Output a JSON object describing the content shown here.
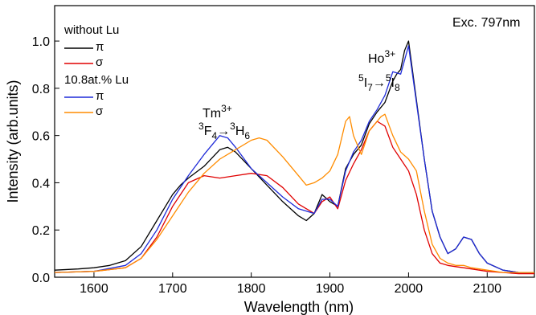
{
  "chart_data": {
    "type": "line",
    "xlabel": "Wavelength (nm)",
    "ylabel": "Intensity (arb.units)",
    "xlim": [
      1550,
      2160
    ],
    "ylim": [
      0,
      1.15
    ],
    "x_ticks": [
      1600,
      1700,
      1800,
      1900,
      2000,
      2100
    ],
    "x_tick_labels": [
      "1600",
      "1700",
      "1800",
      "1900",
      "2000",
      "2100"
    ],
    "y_ticks": [
      0.0,
      0.2,
      0.4,
      0.6,
      0.8,
      1.0
    ],
    "y_tick_labels": [
      "0.0",
      "0.2",
      "0.4",
      "0.6",
      "0.8",
      "1.0"
    ],
    "grid": false,
    "legend_position": "top-left",
    "legend": {
      "group1": "without Lu",
      "group2": "10.8at.% Lu"
    },
    "annotations": {
      "excitation": "Exc. 797nm",
      "tm_ion": "Tm",
      "tm_charge": "3+",
      "tm_upper_mult": "3",
      "tm_upper_term": "F",
      "tm_upper_j": "4",
      "tm_arrow": "→",
      "tm_lower_mult": "3",
      "tm_lower_term": "H",
      "tm_lower_j": "6",
      "ho_ion": "Ho",
      "ho_charge": "3+",
      "ho_upper_mult": "5",
      "ho_upper_term": "I",
      "ho_upper_j": "7",
      "ho_arrow": "→",
      "ho_lower_mult": "5",
      "ho_lower_term": "I",
      "ho_lower_j": "8"
    },
    "series": [
      {
        "name": "π",
        "group": "without Lu",
        "color": "#000000",
        "x": [
          1550,
          1580,
          1600,
          1620,
          1640,
          1660,
          1680,
          1700,
          1710,
          1720,
          1740,
          1760,
          1770,
          1780,
          1800,
          1820,
          1840,
          1860,
          1870,
          1880,
          1890,
          1900,
          1910,
          1920,
          1930,
          1940,
          1950,
          1960,
          1970,
          1980,
          1985,
          1990,
          1995,
          2000,
          2010,
          2020,
          2030,
          2040,
          2050,
          2060,
          2070,
          2080,
          2090,
          2100,
          2120,
          2140,
          2160
        ],
        "values": [
          0.03,
          0.035,
          0.04,
          0.05,
          0.07,
          0.13,
          0.24,
          0.35,
          0.39,
          0.42,
          0.47,
          0.54,
          0.55,
          0.53,
          0.46,
          0.39,
          0.32,
          0.26,
          0.24,
          0.27,
          0.35,
          0.32,
          0.3,
          0.46,
          0.52,
          0.56,
          0.65,
          0.7,
          0.74,
          0.83,
          0.86,
          0.88,
          0.96,
          1.0,
          0.75,
          0.5,
          0.28,
          0.17,
          0.1,
          0.12,
          0.17,
          0.16,
          0.1,
          0.06,
          0.03,
          0.02,
          0.02
        ]
      },
      {
        "name": "σ",
        "group": "without Lu",
        "color": "#e00000",
        "x": [
          1550,
          1600,
          1640,
          1660,
          1680,
          1700,
          1720,
          1740,
          1760,
          1780,
          1800,
          1820,
          1840,
          1860,
          1880,
          1890,
          1900,
          1910,
          1920,
          1930,
          1940,
          1950,
          1960,
          1970,
          1980,
          1990,
          2000,
          2010,
          2020,
          2030,
          2040,
          2050,
          2060,
          2070,
          2080,
          2100,
          2120,
          2140,
          2160
        ],
        "values": [
          0.02,
          0.025,
          0.04,
          0.08,
          0.17,
          0.3,
          0.4,
          0.43,
          0.42,
          0.43,
          0.44,
          0.43,
          0.38,
          0.31,
          0.27,
          0.32,
          0.34,
          0.29,
          0.41,
          0.48,
          0.54,
          0.62,
          0.66,
          0.64,
          0.55,
          0.5,
          0.45,
          0.35,
          0.2,
          0.1,
          0.06,
          0.05,
          0.045,
          0.04,
          0.035,
          0.025,
          0.02,
          0.015,
          0.015
        ]
      },
      {
        "name": "π",
        "group": "10.8at.% Lu",
        "color": "#1f2bd8",
        "x": [
          1550,
          1600,
          1640,
          1660,
          1680,
          1700,
          1720,
          1740,
          1760,
          1770,
          1780,
          1800,
          1820,
          1840,
          1860,
          1880,
          1890,
          1900,
          1910,
          1920,
          1930,
          1940,
          1950,
          1960,
          1970,
          1980,
          1990,
          2000,
          2010,
          2020,
          2030,
          2040,
          2050,
          2060,
          2070,
          2080,
          2090,
          2100,
          2120,
          2140,
          2160
        ],
        "values": [
          0.02,
          0.025,
          0.05,
          0.1,
          0.2,
          0.33,
          0.43,
          0.52,
          0.6,
          0.59,
          0.55,
          0.46,
          0.4,
          0.34,
          0.29,
          0.27,
          0.33,
          0.33,
          0.3,
          0.45,
          0.53,
          0.58,
          0.66,
          0.71,
          0.77,
          0.87,
          0.86,
          0.98,
          0.74,
          0.5,
          0.28,
          0.17,
          0.1,
          0.12,
          0.17,
          0.16,
          0.1,
          0.06,
          0.03,
          0.02,
          0.02
        ]
      },
      {
        "name": "σ",
        "group": "10.8at.% Lu",
        "color": "#ff8c00",
        "x": [
          1550,
          1600,
          1640,
          1660,
          1680,
          1700,
          1720,
          1740,
          1760,
          1780,
          1800,
          1810,
          1820,
          1840,
          1860,
          1870,
          1880,
          1890,
          1900,
          1910,
          1920,
          1925,
          1930,
          1940,
          1950,
          1960,
          1965,
          1970,
          1980,
          1990,
          2000,
          2010,
          2020,
          2030,
          2040,
          2050,
          2060,
          2070,
          2080,
          2100,
          2120,
          2140,
          2160
        ],
        "values": [
          0.02,
          0.025,
          0.04,
          0.08,
          0.16,
          0.26,
          0.36,
          0.44,
          0.5,
          0.54,
          0.58,
          0.59,
          0.58,
          0.51,
          0.43,
          0.39,
          0.4,
          0.42,
          0.45,
          0.52,
          0.66,
          0.68,
          0.6,
          0.52,
          0.62,
          0.66,
          0.68,
          0.69,
          0.6,
          0.53,
          0.5,
          0.45,
          0.28,
          0.14,
          0.08,
          0.06,
          0.05,
          0.05,
          0.04,
          0.03,
          0.02,
          0.02,
          0.02
        ]
      }
    ]
  }
}
